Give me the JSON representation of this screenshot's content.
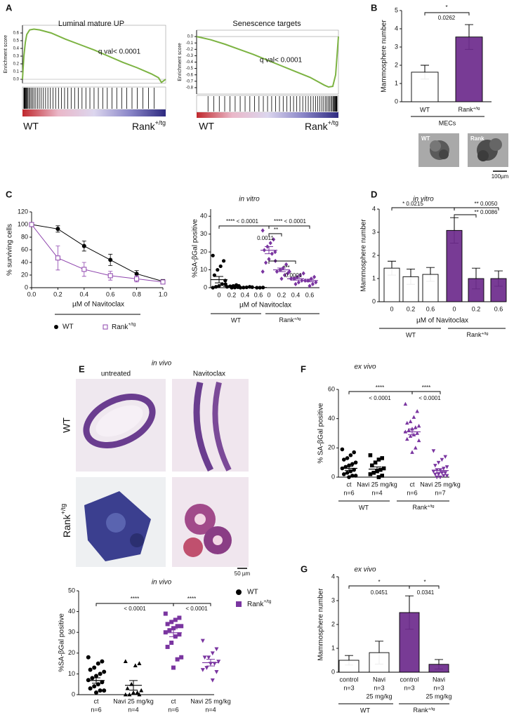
{
  "panels": {
    "letters": [
      "A",
      "B",
      "C",
      "D",
      "E",
      "F",
      "G"
    ],
    "b_images": [
      "WT",
      "Rank"
    ],
    "b_scale": "100µm",
    "e_title": "in vivo",
    "e_columns": [
      "untreated",
      "Navitoclax"
    ],
    "e_rows": [
      "WT",
      "Rank+/tg"
    ],
    "e_scale": "50 µm"
  },
  "chart_data": [
    {
      "type": "line",
      "title": "Luminal mature UP",
      "y_label": "Enrichment score",
      "annotation": "q val< 0.0001",
      "group_labels": [
        "WT",
        "Rank+/tg"
      ],
      "color": "#7cb342",
      "xlim": [
        0,
        1
      ],
      "ylim": [
        -0.05,
        0.7
      ],
      "yticks": [
        {
          "value": 0,
          "label": "0.0"
        },
        0.1,
        0.2,
        0.3,
        0.4,
        0.5,
        0.6
      ],
      "x": [
        0,
        0.01,
        0.02,
        0.03,
        0.05,
        0.08,
        0.12,
        0.2,
        0.3,
        0.4,
        0.5,
        0.6,
        0.7,
        0.8,
        0.9,
        0.95,
        0.97,
        1
      ],
      "values": [
        0,
        0.3,
        0.48,
        0.58,
        0.64,
        0.65,
        0.64,
        0.6,
        0.52,
        0.45,
        0.38,
        0.3,
        0.22,
        0.15,
        0.07,
        0.02,
        -0.04,
        0
      ]
    },
    {
      "type": "line",
      "title": "Senescence targets",
      "y_label": "Enrichment score",
      "annotation": "q val< 0.0001",
      "group_labels": [
        "WT",
        "Rank+/tg"
      ],
      "color": "#7cb342",
      "xlim": [
        0,
        1
      ],
      "ylim": [
        -0.9,
        0.1
      ],
      "yticks": [
        {
          "value": 0,
          "label": "0.0"
        },
        -0.1,
        -0.2,
        -0.3,
        -0.4,
        -0.5,
        -0.6,
        -0.7,
        -0.8
      ],
      "x": [
        0,
        0.02,
        0.1,
        0.2,
        0.3,
        0.4,
        0.5,
        0.6,
        0.7,
        0.8,
        0.85,
        0.9,
        0.93,
        0.96,
        0.98,
        0.99,
        1
      ],
      "values": [
        0,
        -0.01,
        -0.05,
        -0.12,
        -0.2,
        -0.28,
        -0.37,
        -0.46,
        -0.55,
        -0.64,
        -0.7,
        -0.76,
        -0.79,
        -0.78,
        -0.6,
        -0.3,
        0
      ]
    },
    {
      "type": "bar",
      "y_label": "Mammosphere number",
      "categories": [
        "WT",
        "Rank+/tg"
      ],
      "values": [
        1.62,
        3.55
      ],
      "errors": [
        0.38,
        0.68
      ],
      "colors": [
        "#ffffff",
        "#6c2a8c"
      ],
      "ylim": [
        0,
        5
      ],
      "yticks": [
        0,
        1,
        2,
        3,
        4,
        5
      ],
      "group_labels": [
        "MECs"
      ],
      "annotations": [
        "*",
        "0.0262"
      ]
    },
    {
      "type": "line",
      "y_label": "% surviving cells",
      "x_label": "µM of Navitoclax",
      "xlim": [
        0,
        1
      ],
      "xticks": [
        {
          "value": 0,
          "label": "0.0"
        },
        0.2,
        0.4,
        0.6,
        0.8,
        {
          "value": 1,
          "label": "1.0"
        }
      ],
      "ylim": [
        0,
        120
      ],
      "yticks": [
        0,
        20,
        40,
        60,
        80,
        100,
        120
      ],
      "x": [
        0,
        0.2,
        0.4,
        0.6,
        0.8,
        1
      ],
      "series": [
        {
          "name": "WT",
          "color": "#000000",
          "marker": "circle",
          "values": [
            100,
            93,
            66,
            44,
            22,
            10
          ],
          "errors": [
            0,
            5,
            8,
            9,
            5,
            3
          ]
        },
        {
          "name": "Rank+/tg",
          "color": "#8e44ad",
          "marker": "open-square",
          "values": [
            100,
            47,
            29,
            19,
            14,
            9
          ],
          "errors": [
            0,
            19,
            11,
            7,
            5,
            3
          ]
        }
      ]
    },
    {
      "type": "strip",
      "title": "in vitro",
      "y_label": "%SA-βGal positive",
      "x_label": "µM of Navitoclax",
      "categories": [
        "0",
        "0.2",
        "0.4",
        "0.6",
        "0",
        "0.2",
        "0.4",
        "0.6"
      ],
      "group_labels": [
        "WT",
        "Rank+/tg"
      ],
      "ylim": [
        0,
        44
      ],
      "yticks": [
        0,
        10,
        20,
        30,
        40
      ],
      "values": [
        [
          18,
          15,
          12,
          10,
          7,
          4,
          2,
          1,
          0.5,
          0
        ],
        [
          2,
          1.5,
          1,
          0.8,
          0.5,
          0.3,
          0.1,
          0
        ],
        [
          1,
          0.5,
          0.2,
          0.1,
          0
        ],
        [
          0.3,
          0.1,
          0,
          0
        ],
        [
          32,
          27,
          25,
          23,
          21,
          20,
          19,
          16,
          14,
          9
        ],
        [
          15,
          13,
          11,
          10,
          9,
          8,
          7,
          5
        ],
        [
          9,
          7,
          6,
          5,
          5,
          4,
          3,
          2
        ],
        [
          8,
          6,
          5,
          4,
          4,
          3,
          2,
          1
        ]
      ],
      "means": [
        4.5,
        0.8,
        0.3,
        0.1,
        21,
        10,
        5,
        4
      ],
      "errors": [
        1.8,
        0.3,
        0.1,
        0.05,
        2,
        1,
        0.8,
        0.7
      ],
      "colors": [
        "#000000",
        "#000000",
        "#000000",
        "#000000",
        "#7a35a0",
        "#7a35a0",
        "#7a35a0",
        "#7a35a0"
      ],
      "markers": [
        "circle",
        "circle",
        "circle",
        "circle",
        "diamond",
        "diamond",
        "diamond",
        "diamond"
      ],
      "annotations": [
        "**** < 0.0001",
        "**** < 0.0001",
        "**",
        "0.0011",
        "***",
        "0.0001"
      ]
    },
    {
      "type": "bar",
      "title": "in vitro",
      "y_label": "Mammosphere number",
      "x_label": "µM of Navitoclax",
      "categories": [
        "0",
        "0.2",
        "0.6",
        "0",
        "0.2",
        "0.6"
      ],
      "values": [
        1.45,
        1.08,
        1.18,
        3.08,
        1.0,
        1.0
      ],
      "errors": [
        0.3,
        0.33,
        0.3,
        0.55,
        0.45,
        0.33
      ],
      "colors": [
        "#ffffff",
        "#ffffff",
        "#ffffff",
        "#6c2a8c",
        "#6c2a8c",
        "#6c2a8c"
      ],
      "ylim": [
        0,
        4
      ],
      "yticks": [
        0,
        1,
        2,
        3,
        4
      ],
      "group_labels": [
        "WT",
        "Rank+/tg"
      ],
      "annotations": [
        "* 0.0215",
        "** 0.0050",
        "** 0.0086"
      ]
    },
    {
      "type": "strip",
      "title": "in vivo",
      "y_label": "%SA-βGal positive",
      "categories": [
        "ct",
        "Navi 25 mg/kg",
        "ct",
        "Navi 25 mg/kg"
      ],
      "category_notes": [
        [
          "n=6"
        ],
        [
          "n=4"
        ],
        [
          "n=6"
        ],
        [
          "n=4"
        ]
      ],
      "ylim": [
        0,
        50
      ],
      "yticks": [
        0,
        10,
        20,
        30,
        40,
        50
      ],
      "values": [
        [
          18,
          16,
          15,
          13,
          12,
          11,
          10,
          9,
          8,
          7,
          6,
          5,
          4,
          3,
          2,
          2,
          1
        ],
        [
          16,
          15,
          14,
          5,
          3,
          2,
          1,
          1,
          0,
          0,
          0
        ],
        [
          39,
          37,
          36,
          35,
          34,
          33,
          33,
          32,
          31,
          30,
          29,
          28,
          25,
          23,
          18,
          17,
          13
        ],
        [
          26,
          22,
          20,
          18,
          18,
          16,
          15,
          15,
          13,
          12,
          11,
          7
        ]
      ],
      "means": [
        6.8,
        4.5,
        29.8,
        15.4
      ],
      "errors": [
        1.3,
        2.3,
        1.9,
        1.6
      ],
      "colors": [
        "#000000",
        "#000000",
        "#7a35a0",
        "#7a35a0"
      ],
      "markers": [
        "circle",
        "triangle",
        "square",
        "inv-triangle"
      ],
      "series": [
        {
          "name": "WT",
          "color": "#000000",
          "marker": "circle"
        },
        {
          "name": "Rank+/tg",
          "color": "#7a35a0",
          "marker": "square"
        }
      ],
      "annotations": [
        "****",
        "< 0.0001",
        "****",
        "< 0.0001"
      ]
    },
    {
      "type": "strip",
      "title": "ex vivo",
      "y_label": "% SA-βGal positive",
      "categories": [
        "ct",
        "Navi 25 mg/kg",
        "ct",
        "Navi 25 mg/kg"
      ],
      "category_notes": [
        [
          "n=6"
        ],
        [
          "n=4"
        ],
        [
          "n=6"
        ],
        [
          "n=7"
        ]
      ],
      "group_labels": [
        "WT",
        "Rank+/tg"
      ],
      "ylim": [
        0,
        60
      ],
      "yticks": [
        0,
        20,
        40,
        60
      ],
      "values": [
        [
          19,
          17,
          15,
          13,
          12,
          10,
          9,
          8,
          7,
          6,
          5,
          4,
          3,
          2,
          1,
          1,
          0
        ],
        [
          15,
          13,
          12,
          10,
          8,
          6,
          5,
          4,
          3,
          2,
          1,
          0
        ],
        [
          50,
          45,
          41,
          38,
          37,
          35,
          34,
          33,
          32,
          31,
          30,
          29,
          28,
          26,
          25,
          20,
          17
        ],
        [
          18,
          14,
          12,
          10,
          8,
          7,
          6,
          5,
          5,
          4,
          3,
          3,
          2,
          2,
          1,
          1,
          0,
          0
        ]
      ],
      "means": [
        6,
        5.5,
        31,
        4.5
      ],
      "errors": [
        1.4,
        1.5,
        2,
        1.2
      ],
      "colors": [
        "#000000",
        "#000000",
        "#7a35a0",
        "#7a35a0"
      ],
      "markers": [
        "circle",
        "square",
        "triangle",
        "inv-triangle"
      ],
      "annotations": [
        "****",
        "< 0.0001",
        "****",
        "< 0.0001"
      ]
    },
    {
      "type": "bar",
      "title": "ex vivo",
      "y_label": "Mammosphere number",
      "categories": [
        "control",
        "Navi",
        "control",
        "Navi"
      ],
      "category_notes": [
        [
          "n=3"
        ],
        [
          "n=3",
          "25 mg/kg"
        ],
        [
          "n=3"
        ],
        [
          "n=3",
          "25 mg/kg"
        ]
      ],
      "values": [
        0.5,
        0.82,
        2.5,
        0.33
      ],
      "errors": [
        0.2,
        0.48,
        0.7,
        0.2
      ],
      "colors": [
        "#ffffff",
        "#ffffff",
        "#6c2a8c",
        "#6c2a8c"
      ],
      "ylim": [
        0,
        4
      ],
      "yticks": [
        0,
        1,
        2,
        3,
        4
      ],
      "group_labels": [
        "WT",
        "Rank+/tg"
      ],
      "annotations": [
        "*",
        "0.0451",
        "*",
        "0.0341"
      ]
    }
  ]
}
